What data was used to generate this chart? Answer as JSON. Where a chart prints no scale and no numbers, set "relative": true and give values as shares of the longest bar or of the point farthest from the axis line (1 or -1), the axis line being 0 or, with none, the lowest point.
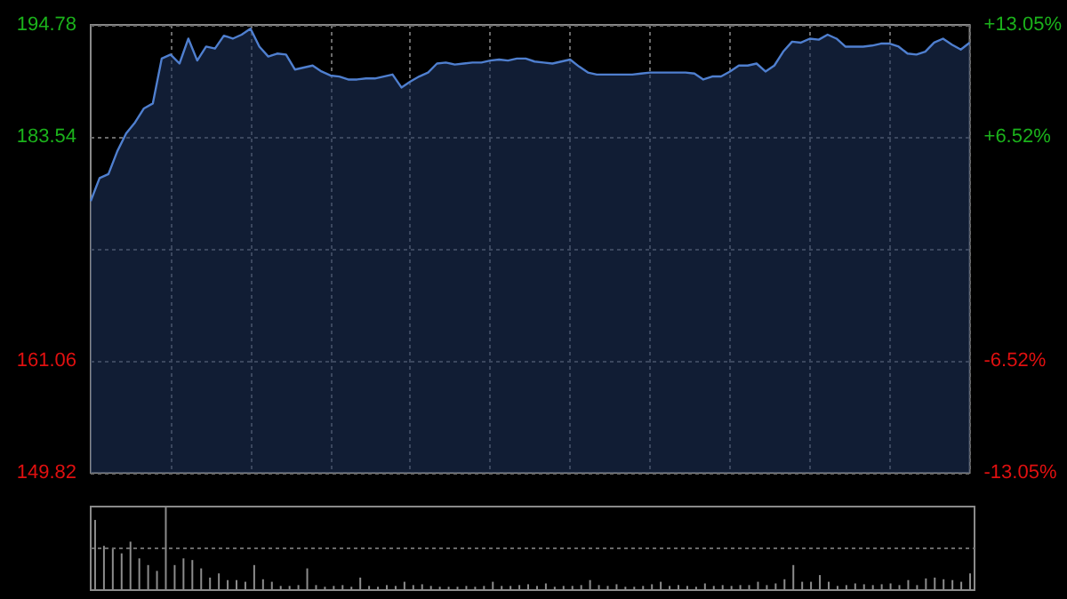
{
  "chart_data": [
    {
      "type": "area",
      "categories": [
        null,
        null,
        null,
        null,
        null,
        null,
        null,
        null,
        null,
        null,
        null,
        null,
        null,
        null,
        null,
        null,
        null,
        null,
        null,
        null,
        null,
        null,
        null,
        null,
        null,
        null,
        null,
        null,
        null,
        null,
        null,
        null,
        null,
        null,
        null,
        null,
        null,
        null,
        null,
        null,
        null,
        null,
        null,
        null,
        null,
        null,
        null,
        null,
        null,
        null,
        null,
        null,
        null,
        null,
        null,
        null,
        null,
        null,
        null,
        null,
        null,
        null,
        null,
        null,
        null,
        null,
        null,
        null,
        null,
        null,
        null,
        null,
        null,
        null,
        null,
        null,
        null,
        null,
        null,
        null,
        null,
        null,
        null,
        null,
        null,
        null,
        null,
        null,
        null,
        null,
        null,
        null,
        null,
        null,
        null,
        null,
        null,
        null,
        null,
        null
      ],
      "series": [
        {
          "color": "#4f7fcf",
          "values": [
            177.1,
            179.4,
            179.8,
            182.1,
            183.9,
            185.0,
            186.4,
            186.9,
            191.4,
            191.8,
            190.9,
            193.4,
            191.2,
            192.6,
            192.4,
            193.7,
            193.4,
            193.8,
            194.4,
            192.6,
            191.6,
            191.9,
            191.8,
            190.3,
            190.5,
            190.7,
            190.1,
            189.7,
            189.6,
            189.3,
            189.3,
            189.4,
            189.4,
            189.6,
            189.8,
            188.5,
            189.1,
            189.6,
            190.0,
            190.9,
            191.0,
            190.8,
            190.9,
            191.0,
            191.0,
            191.2,
            191.3,
            191.2,
            191.4,
            191.4,
            191.1,
            191.0,
            190.9,
            191.1,
            191.3,
            190.6,
            190.0,
            189.8,
            189.8,
            189.8,
            189.8,
            189.8,
            189.9,
            190.0,
            190.0,
            190.0,
            190.0,
            190.0,
            189.9,
            189.3,
            189.6,
            189.6,
            190.1,
            190.7,
            190.7,
            190.9,
            190.1,
            190.7,
            192.1,
            193.1,
            193.0,
            193.4,
            193.3,
            193.8,
            193.4,
            192.6,
            192.6,
            192.6,
            192.7,
            192.9,
            192.9,
            192.6,
            191.9,
            191.8,
            192.1,
            193.0,
            193.4,
            192.8,
            192.3,
            193.0
          ]
        }
      ],
      "ylim": [
        149.82,
        194.78
      ],
      "yticks": [
        149.82,
        161.06,
        {
          "value": 172.3,
          "label": null
        },
        183.54,
        194.78
      ],
      "y2lim": [
        -13.05,
        13.05
      ],
      "y2ticks": [
        {
          "value": -13.05,
          "label": "-13.05%"
        },
        {
          "value": -6.52,
          "label": "-6.52%"
        },
        {
          "value": 0,
          "label": null
        },
        {
          "value": 6.52,
          "label": "+6.52%"
        },
        {
          "value": 13.05,
          "label": "+13.05%"
        }
      ],
      "grid": true
    },
    {
      "type": "bar",
      "relative": true,
      "categories": [
        null,
        null,
        null,
        null,
        null,
        null,
        null,
        null,
        null,
        null,
        null,
        null,
        null,
        null,
        null,
        null,
        null,
        null,
        null,
        null,
        null,
        null,
        null,
        null,
        null,
        null,
        null,
        null,
        null,
        null,
        null,
        null,
        null,
        null,
        null,
        null,
        null,
        null,
        null,
        null,
        null,
        null,
        null,
        null,
        null,
        null,
        null,
        null,
        null,
        null,
        null,
        null,
        null,
        null,
        null,
        null,
        null,
        null,
        null,
        null,
        null,
        null,
        null,
        null,
        null,
        null,
        null,
        null,
        null,
        null,
        null,
        null,
        null,
        null,
        null,
        null,
        null,
        null,
        null,
        null,
        null,
        null,
        null,
        null,
        null,
        null,
        null,
        null,
        null,
        null,
        null,
        null,
        null,
        null,
        null,
        null,
        null,
        null,
        null,
        null
      ],
      "series": [
        {
          "color": "#8c8c8c",
          "values": [
            0.84,
            0.53,
            0.5,
            0.44,
            0.58,
            0.38,
            0.3,
            0.23,
            1.0,
            0.3,
            0.38,
            0.36,
            0.26,
            0.15,
            0.2,
            0.12,
            0.12,
            0.1,
            0.3,
            0.13,
            0.1,
            0.05,
            0.05,
            0.06,
            0.26,
            0.06,
            0.04,
            0.05,
            0.06,
            0.04,
            0.15,
            0.05,
            0.04,
            0.06,
            0.05,
            0.1,
            0.06,
            0.07,
            0.05,
            0.04,
            0.04,
            0.04,
            0.05,
            0.04,
            0.05,
            0.1,
            0.05,
            0.05,
            0.06,
            0.07,
            0.05,
            0.08,
            0.04,
            0.05,
            0.05,
            0.06,
            0.12,
            0.06,
            0.05,
            0.07,
            0.04,
            0.04,
            0.05,
            0.07,
            0.1,
            0.05,
            0.06,
            0.05,
            0.04,
            0.08,
            0.05,
            0.06,
            0.05,
            0.06,
            0.06,
            0.1,
            0.06,
            0.08,
            0.13,
            0.3,
            0.1,
            0.1,
            0.18,
            0.1,
            0.05,
            0.06,
            0.08,
            0.07,
            0.06,
            0.07,
            0.08,
            0.06,
            0.12,
            0.06,
            0.14,
            0.15,
            0.13,
            0.12,
            0.1,
            0.2
          ]
        }
      ],
      "ref_lines": [
        {
          "axis": "y",
          "value": 0.5,
          "line_style": "dotted",
          "color": "#6a6a6a"
        }
      ]
    }
  ]
}
